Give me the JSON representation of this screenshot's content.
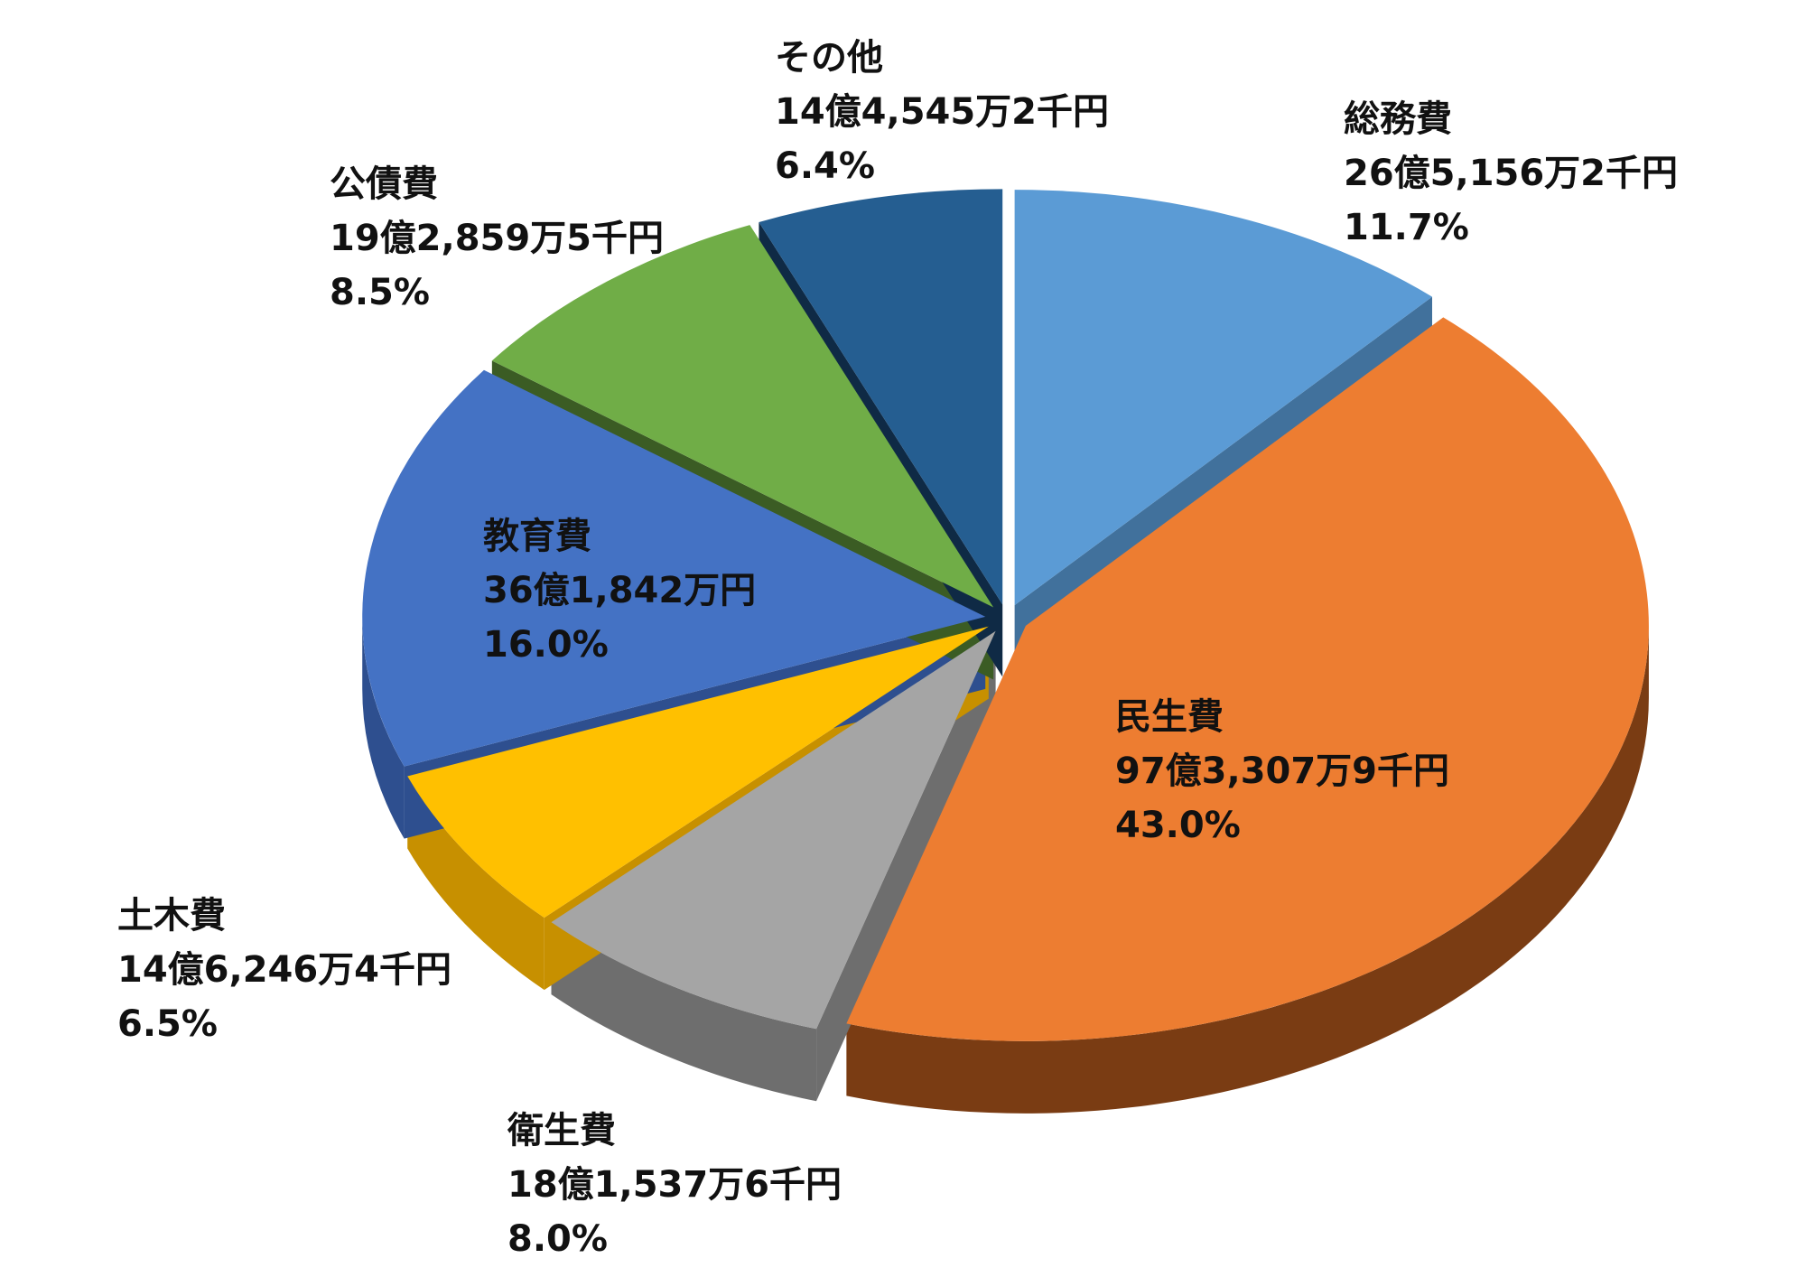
{
  "chart_data": {
    "type": "pie",
    "style": "3d-exploded",
    "title": "",
    "slices": [
      {
        "label": "総務費",
        "amount": "26億5,156万2千円",
        "percent": "11.7%",
        "value": 11.7,
        "color": "#5b9bd5",
        "side": "#41719c"
      },
      {
        "label": "民生費",
        "amount": "97億3,307万9千円",
        "percent": "43.0%",
        "value": 43.0,
        "color": "#ed7d31",
        "side": "#7a3c13"
      },
      {
        "label": "衛生費",
        "amount": "18億1,537万6千円",
        "percent": "8.0%",
        "value": 8.0,
        "color": "#a5a5a5",
        "side": "#6e6e6e"
      },
      {
        "label": "土木費",
        "amount": "14億6,246万4千円",
        "percent": "6.5%",
        "value": 6.5,
        "color": "#ffc000",
        "side": "#c79000"
      },
      {
        "label": "教育費",
        "amount": "36億1,842万円",
        "percent": "16.0%",
        "value": 16.0,
        "color": "#4472c4",
        "side": "#2e4f8f"
      },
      {
        "label": "公債費",
        "amount": "19億2,859万5千円",
        "percent": "8.5%",
        "value": 8.5,
        "color": "#70ad47",
        "side": "#3b5c24"
      },
      {
        "label": "その他",
        "amount": "14億4,545万2千円",
        "percent": "6.4%",
        "value": 6.4,
        "color": "#255e91",
        "side": "#0f2a45"
      }
    ]
  }
}
